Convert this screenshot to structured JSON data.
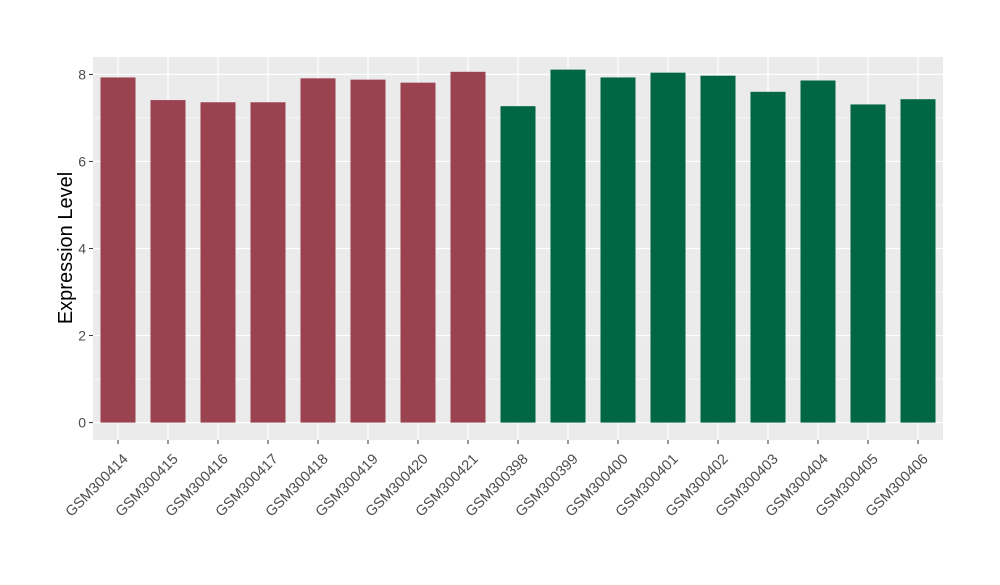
{
  "chart_data": {
    "type": "bar",
    "ylabel": "Expression Level",
    "xlabel": "",
    "ylim": [
      -0.4,
      8.4
    ],
    "yticks": [
      0,
      2,
      4,
      6,
      8
    ],
    "grid": true,
    "colors": {
      "group1": "#9A4250",
      "group2": "#006644",
      "panel": "#EBEBEB",
      "grid": "#FFFFFF"
    },
    "categories": [
      "GSM300414",
      "GSM300415",
      "GSM300416",
      "GSM300417",
      "GSM300418",
      "GSM300419",
      "GSM300420",
      "GSM300421",
      "GSM300398",
      "GSM300399",
      "GSM300400",
      "GSM300401",
      "GSM300402",
      "GSM300403",
      "GSM300404",
      "GSM300405",
      "GSM300406"
    ],
    "values": [
      7.93,
      7.41,
      7.36,
      7.36,
      7.91,
      7.88,
      7.81,
      8.06,
      7.27,
      8.11,
      7.93,
      8.04,
      7.97,
      7.6,
      7.86,
      7.31,
      7.43
    ],
    "groups": [
      1,
      1,
      1,
      1,
      1,
      1,
      1,
      1,
      2,
      2,
      2,
      2,
      2,
      2,
      2,
      2,
      2
    ]
  }
}
